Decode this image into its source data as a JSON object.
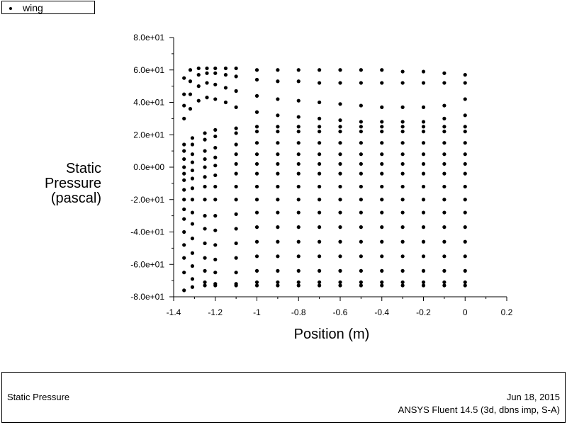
{
  "legend": {
    "label": "wing"
  },
  "footer": {
    "left": "Static Pressure",
    "date": "Jun 18, 2015",
    "software": "ANSYS Fluent 14.5 (3d, dbns imp, S-A)"
  },
  "chart_data": {
    "type": "scatter",
    "xlabel": "Position (m)",
    "ylabel": [
      "Static",
      "Pressure",
      "(pascal)"
    ],
    "xlim": [
      -1.4,
      0.2
    ],
    "ylim": [
      -80,
      80
    ],
    "xticks": [
      -1.4,
      -1.2,
      -1,
      -0.8,
      -0.6,
      -0.4,
      -0.2,
      0,
      0.2
    ],
    "xtick_labels": [
      "-1.4",
      "-1.2",
      "-1",
      "-0.8",
      "-0.6",
      "-0.4",
      "-0.2",
      "0",
      "0.2"
    ],
    "yticks": [
      -80,
      -60,
      -40,
      -20,
      0,
      20,
      40,
      60,
      80
    ],
    "ytick_labels": [
      "-8.0e+01",
      "-6.0e+01",
      "-4.0e+01",
      "-2.0e+01",
      "0.0e+00",
      "2.0e+01",
      "4.0e+01",
      "6.0e+01",
      "8.0e+01"
    ],
    "grid": false,
    "legend_position": "top-left",
    "marker_color": "#000000",
    "series": [
      {
        "name": "wing",
        "curves": [
          {
            "x": [
              -1.35,
              -1.31,
              -1.25,
              -1.2,
              -1.1,
              -1.0,
              -0.9,
              -0.8,
              -0.7,
              -0.6,
              -0.5,
              -0.4,
              -0.3,
              -0.2,
              -0.1,
              0.0
            ],
            "y": [
              5,
              8,
              10,
              12,
              14,
              15,
              15,
              15,
              15,
              15,
              15,
              15,
              15,
              15,
              15,
              15
            ]
          },
          {
            "x": [
              -1.35,
              -1.31,
              -1.25,
              -1.2,
              -1.1,
              -1.0,
              -0.9,
              -0.8,
              -0.7,
              -0.6,
              -0.5,
              -0.4,
              -0.3,
              -0.2,
              -0.1,
              0.0
            ],
            "y": [
              10,
              14,
              17,
              19,
              21,
              22,
              22,
              22,
              22,
              22,
              22,
              22,
              22,
              22,
              22,
              22
            ]
          },
          {
            "x": [
              -1.35,
              -1.31,
              -1.25,
              -1.2,
              -1.1,
              -1.0,
              -0.9,
              -0.8,
              -0.7,
              -0.6,
              -0.5,
              -0.4,
              -0.3,
              -0.2,
              -0.1,
              0.0
            ],
            "y": [
              14,
              18,
              21,
              23,
              24,
              25,
              25,
              25,
              25,
              25,
              25,
              25,
              25,
              25,
              25,
              25
            ]
          },
          {
            "x": [
              -1.35,
              -1.31,
              -1.25,
              -1.2,
              -1.1,
              -1.0,
              -0.9,
              -0.8,
              -0.7,
              -0.6,
              -0.5,
              -0.4,
              -0.3,
              -0.2,
              -0.1,
              0.0
            ],
            "y": [
              0,
              3,
              5,
              6,
              8,
              8,
              8,
              8,
              8,
              8,
              8,
              8,
              8,
              8,
              8,
              8
            ]
          },
          {
            "x": [
              -1.35,
              -1.31,
              -1.25,
              -1.2,
              -1.1,
              -1.0,
              -0.9,
              -0.8,
              -0.7,
              -0.6,
              -0.5,
              -0.4,
              -0.3,
              -0.2,
              -0.1,
              0.0
            ],
            "y": [
              -4,
              -2,
              0,
              1,
              2,
              2,
              2,
              2,
              2,
              2,
              2,
              2,
              2,
              2,
              2,
              2
            ]
          },
          {
            "x": [
              -1.35,
              -1.31,
              -1.25,
              -1.2,
              -1.1,
              -1.0,
              -0.9,
              -0.8,
              -0.7,
              -0.6,
              -0.5,
              -0.4,
              -0.3,
              -0.2,
              -0.1,
              0.0
            ],
            "y": [
              -8,
              -7,
              -6,
              -5,
              -4,
              -4,
              -4,
              -4,
              -4,
              -4,
              -4,
              -4,
              -4,
              -4,
              -4,
              -4
            ]
          },
          {
            "x": [
              -1.35,
              -1.31,
              -1.25,
              -1.2,
              -1.1,
              -1.0,
              -0.9,
              -0.8,
              -0.7,
              -0.6,
              -0.5,
              -0.4,
              -0.3,
              -0.2,
              -0.1,
              0.0
            ],
            "y": [
              -14,
              -13,
              -12,
              -12,
              -12,
              -12,
              -12,
              -12,
              -12,
              -12,
              -12,
              -12,
              -12,
              -12,
              -12,
              -12
            ]
          },
          {
            "x": [
              -1.35,
              -1.31,
              -1.25,
              -1.2,
              -1.1,
              -1.0,
              -0.9,
              -0.8,
              -0.7,
              -0.6,
              -0.5,
              -0.4,
              -0.3,
              -0.2,
              -0.1,
              0.0
            ],
            "y": [
              -20,
              -20,
              -20,
              -20,
              -20,
              -20,
              -20,
              -20,
              -20,
              -20,
              -20,
              -20,
              -20,
              -20,
              -20,
              -20
            ]
          },
          {
            "x": [
              -1.35,
              -1.31,
              -1.25,
              -1.2,
              -1.1,
              -1.0,
              -0.9,
              -0.8,
              -0.7,
              -0.6,
              -0.5,
              -0.4,
              -0.3,
              -0.2,
              -0.1,
              0.0
            ],
            "y": [
              -26,
              -28,
              -30,
              -30,
              -29,
              -28,
              -28,
              -28,
              -28,
              -28,
              -28,
              -28,
              -28,
              -28,
              -28,
              -28
            ]
          },
          {
            "x": [
              -1.35,
              -1.31,
              -1.25,
              -1.2,
              -1.1,
              -1.0,
              -0.9,
              -0.8,
              -0.7,
              -0.6,
              -0.5,
              -0.4,
              -0.3,
              -0.2,
              -0.1,
              0.0
            ],
            "y": [
              -32,
              -35,
              -38,
              -39,
              -38,
              -37,
              -37,
              -37,
              -37,
              -37,
              -37,
              -37,
              -37,
              -37,
              -37,
              -37
            ]
          },
          {
            "x": [
              -1.35,
              -1.31,
              -1.25,
              -1.2,
              -1.1,
              -1.0,
              -0.9,
              -0.8,
              -0.7,
              -0.6,
              -0.5,
              -0.4,
              -0.3,
              -0.2,
              -0.1,
              0.0
            ],
            "y": [
              -40,
              -44,
              -47,
              -48,
              -47,
              -46,
              -46,
              -46,
              -46,
              -46,
              -46,
              -46,
              -46,
              -46,
              -46,
              -46
            ]
          },
          {
            "x": [
              -1.35,
              -1.31,
              -1.25,
              -1.2,
              -1.1,
              -1.0,
              -0.9,
              -0.8,
              -0.7,
              -0.6,
              -0.5,
              -0.4,
              -0.3,
              -0.2,
              -0.1,
              0.0
            ],
            "y": [
              -48,
              -53,
              -56,
              -57,
              -56,
              -55,
              -55,
              -55,
              -55,
              -55,
              -55,
              -55,
              -55,
              -55,
              -55,
              -55
            ]
          },
          {
            "x": [
              -1.35,
              -1.31,
              -1.25,
              -1.2,
              -1.1,
              -1.0,
              -0.9,
              -0.8,
              -0.7,
              -0.6,
              -0.5,
              -0.4,
              -0.3,
              -0.2,
              -0.1,
              0.0
            ],
            "y": [
              -56,
              -61,
              -64,
              -65,
              -65,
              -64,
              -64,
              -64,
              -64,
              -64,
              -64,
              -64,
              -64,
              -64,
              -64,
              -64
            ]
          },
          {
            "x": [
              -1.35,
              -1.31,
              -1.25,
              -1.2,
              -1.1,
              -1.0,
              -0.9,
              -0.8,
              -0.7,
              -0.6,
              -0.5,
              -0.4,
              -0.3,
              -0.2,
              -0.1,
              0.0
            ],
            "y": [
              -65,
              -69,
              -71,
              -72,
              -72,
              -71,
              -71,
              -71,
              -71,
              -71,
              -71,
              -71,
              -71,
              -71,
              -71,
              -71
            ]
          },
          {
            "x": [
              -1.35,
              -1.31,
              -1.25,
              -1.2,
              -1.1,
              -1.0,
              -0.9,
              -0.8,
              -0.7,
              -0.6,
              -0.5,
              -0.4,
              -0.3,
              -0.2,
              -0.1,
              0.0
            ],
            "y": [
              -76,
              -74,
              -73,
              -73,
              -73,
              -73,
              -73,
              -73,
              -73,
              -73,
              -73,
              -73,
              -73,
              -73,
              -73,
              -73
            ]
          },
          {
            "x": [
              -1.35,
              -1.32,
              -1.28,
              -1.24,
              -1.2,
              -1.15,
              -1.1,
              -1.0,
              -0.9,
              -0.8,
              -0.7,
              -0.6,
              -0.5,
              -0.4,
              -0.3,
              -0.2,
              -0.1,
              0.0
            ],
            "y": [
              55,
              60,
              61,
              61,
              61,
              61,
              61,
              60,
              60,
              60,
              60,
              60,
              60,
              60,
              59,
              59,
              58,
              57
            ]
          },
          {
            "x": [
              -1.35,
              -1.32,
              -1.28,
              -1.24,
              -1.2,
              -1.15,
              -1.1,
              -1.0,
              -0.9,
              -0.8,
              -0.7,
              -0.6,
              -0.5,
              -0.4,
              -0.3,
              -0.2,
              -0.1,
              0.0
            ],
            "y": [
              45,
              53,
              57,
              58,
              58,
              57,
              56,
              54,
              53,
              53,
              52,
              52,
              52,
              52,
              52,
              52,
              52,
              52
            ]
          },
          {
            "x": [
              -1.35,
              -1.32,
              -1.28,
              -1.24,
              -1.2,
              -1.15,
              -1.1,
              -1.0,
              -0.9,
              -0.8,
              -0.7,
              -0.6,
              -0.5,
              -0.4,
              -0.3,
              -0.2,
              -0.1,
              0.0
            ],
            "y": [
              38,
              45,
              50,
              52,
              51,
              49,
              47,
              44,
              42,
              41,
              40,
              39,
              38,
              37,
              37,
              37,
              38,
              42
            ]
          },
          {
            "x": [
              -1.35,
              -1.32,
              -1.28,
              -1.24,
              -1.2,
              -1.15,
              -1.1,
              -1.0,
              -0.9,
              -0.8,
              -0.7,
              -0.6,
              -0.5,
              -0.4,
              -0.3,
              -0.2,
              -0.1,
              0.0
            ],
            "y": [
              30,
              36,
              41,
              43,
              42,
              40,
              37,
              34,
              32,
              31,
              30,
              29,
              28,
              28,
              28,
              28,
              30,
              32
            ]
          }
        ]
      }
    ]
  }
}
